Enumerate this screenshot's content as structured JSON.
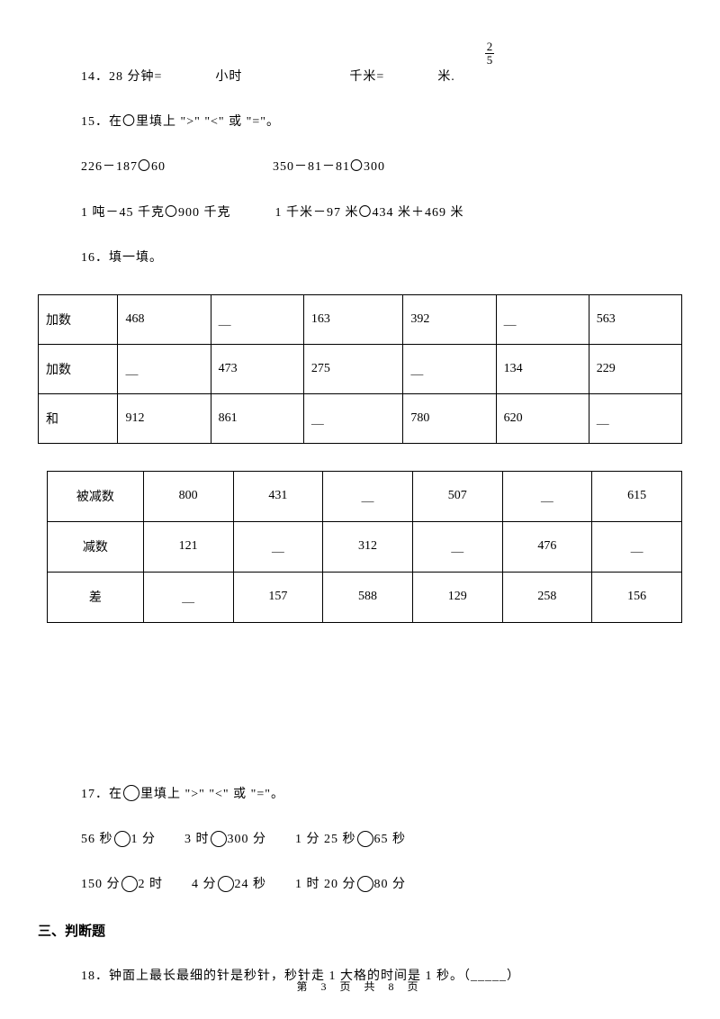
{
  "q14": {
    "frac_num": "2",
    "frac_den": "5",
    "text_a": "14．28 分钟=",
    "text_b": "小时",
    "text_c": "千米=",
    "text_d": "米."
  },
  "q15": {
    "prompt": "15．在〇里填上 \">\" \"<\" 或 \"=\"。",
    "line1a": "226－187〇60",
    "line1b": "350－81－81〇300",
    "line2a": "1 吨－45 千克〇900 千克",
    "line2b": "1 千米－97 米〇434 米＋469 米"
  },
  "q16": {
    "prompt": "16．填一填。",
    "table1": {
      "rows": [
        [
          "加数",
          "468",
          "＿",
          "163",
          "392",
          "＿",
          "563"
        ],
        [
          "加数",
          "＿",
          "473",
          "275",
          "＿",
          "134",
          "229"
        ],
        [
          "和",
          "912",
          "861",
          "＿",
          "780",
          "620",
          "＿"
        ]
      ],
      "col_widths": [
        "12%",
        "14%",
        "14%",
        "15%",
        "14%",
        "14%",
        "14%"
      ]
    },
    "table2": {
      "rows": [
        [
          "被减数",
          "800",
          "431",
          "＿",
          "507",
          "＿",
          "615"
        ],
        [
          "减数",
          "121",
          "＿",
          "312",
          "＿",
          "476",
          "＿"
        ],
        [
          "差",
          "＿",
          "157",
          "588",
          "129",
          "258",
          "156"
        ]
      ],
      "col_widths": [
        "15%",
        "14%",
        "14%",
        "14%",
        "14%",
        "14%",
        "14%"
      ]
    }
  },
  "q17": {
    "prompt_pre": "17．在",
    "prompt_post": "里填上 \">\" \"<\" 或 \"=\"。",
    "row1": [
      {
        "a": "56 秒",
        "b": "1 分"
      },
      {
        "a": "3 时",
        "b": "300 分"
      },
      {
        "a": "1 分 25 秒",
        "b": "65 秒"
      }
    ],
    "row2": [
      {
        "a": "150 分",
        "b": "2 时"
      },
      {
        "a": "4 分",
        "b": "24 秒"
      },
      {
        "a": "1 时 20 分",
        "b": "80 分"
      }
    ]
  },
  "section3": "三、判断题",
  "q18": "18．钟面上最长最细的针是秒针，秒针走 1 大格的时间是 1 秒。（_____）",
  "footer": "第 3 页 共 8 页"
}
